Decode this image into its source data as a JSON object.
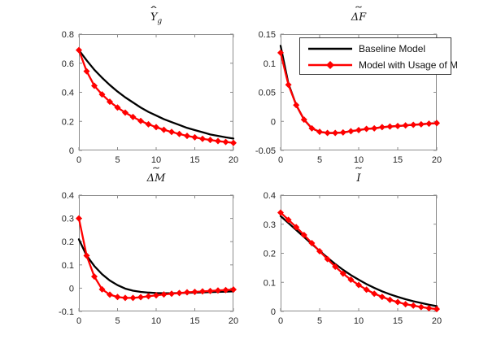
{
  "figure": {
    "background": "#ffffff",
    "axis_color": "#8c8c8c",
    "tick_label_color": "#262626"
  },
  "legend": {
    "position": "top-right-overlay-on-deltaF-subplot",
    "entries": [
      {
        "label": "Baseline Model",
        "color": "#000000",
        "marker": "none"
      },
      {
        "label": "Model with Usage of M",
        "color": "#ff0000",
        "marker": "diamond"
      }
    ]
  },
  "chart_data": [
    {
      "type": "line",
      "title": {
        "base": "Y",
        "sub": "g",
        "accent": "ˆ"
      },
      "xlabel": "",
      "ylabel": "",
      "grid": false,
      "x": [
        0,
        1,
        2,
        3,
        4,
        5,
        6,
        7,
        8,
        9,
        10,
        11,
        12,
        13,
        14,
        15,
        16,
        17,
        18,
        19,
        20
      ],
      "xlim": [
        0,
        20
      ],
      "ylim": [
        0,
        0.8
      ],
      "xticks": [
        0,
        5,
        10,
        15,
        20
      ],
      "yticks": [
        0,
        0.2,
        0.4,
        0.6,
        0.8
      ],
      "series": [
        {
          "name": "Baseline Model",
          "color": "#000000",
          "marker": "none",
          "values": [
            0.69,
            0.62,
            0.555,
            0.5,
            0.45,
            0.405,
            0.365,
            0.33,
            0.295,
            0.265,
            0.24,
            0.215,
            0.195,
            0.175,
            0.155,
            0.14,
            0.125,
            0.11,
            0.1,
            0.09,
            0.082
          ]
        },
        {
          "name": "Model with Usage of M",
          "color": "#ff0000",
          "marker": "diamond",
          "values": [
            0.69,
            0.545,
            0.445,
            0.385,
            0.335,
            0.295,
            0.26,
            0.23,
            0.203,
            0.18,
            0.16,
            0.142,
            0.127,
            0.113,
            0.1,
            0.09,
            0.08,
            0.072,
            0.064,
            0.058,
            0.052
          ]
        }
      ]
    },
    {
      "type": "line",
      "title": {
        "base": "ΔF",
        "sub": "",
        "accent": "˜"
      },
      "xlabel": "",
      "ylabel": "",
      "grid": false,
      "legend": true,
      "x": [
        0,
        1,
        2,
        3,
        4,
        5,
        6,
        7,
        8,
        9,
        10,
        11,
        12,
        13,
        14,
        15,
        16,
        17,
        18,
        19,
        20
      ],
      "xlim": [
        0,
        20
      ],
      "ylim": [
        -0.05,
        0.15
      ],
      "xticks": [
        0,
        5,
        10,
        15,
        20
      ],
      "yticks": [
        -0.05,
        0,
        0.05,
        0.1,
        0.15
      ],
      "series": [
        {
          "name": "Baseline Model",
          "color": "#000000",
          "marker": "none",
          "values": [
            0.13,
            0.065,
            0.028,
            0.003,
            -0.012,
            -0.018,
            -0.02,
            -0.02,
            -0.019,
            -0.017,
            -0.015,
            -0.013,
            -0.012,
            -0.01,
            -0.009,
            -0.008,
            -0.007,
            -0.006,
            -0.005,
            -0.004,
            -0.003
          ]
        },
        {
          "name": "Model with Usage of M",
          "color": "#ff0000",
          "marker": "diamond",
          "values": [
            0.118,
            0.063,
            0.028,
            0.003,
            -0.012,
            -0.018,
            -0.02,
            -0.02,
            -0.019,
            -0.017,
            -0.015,
            -0.013,
            -0.012,
            -0.01,
            -0.009,
            -0.008,
            -0.007,
            -0.006,
            -0.005,
            -0.004,
            -0.003
          ]
        }
      ]
    },
    {
      "type": "line",
      "title": {
        "base": "ΔM",
        "sub": "",
        "accent": "˜"
      },
      "xlabel": "",
      "ylabel": "",
      "grid": false,
      "x": [
        0,
        1,
        2,
        3,
        4,
        5,
        6,
        7,
        8,
        9,
        10,
        11,
        12,
        13,
        14,
        15,
        16,
        17,
        18,
        19,
        20
      ],
      "xlim": [
        0,
        20
      ],
      "ylim": [
        -0.1,
        0.4
      ],
      "xticks": [
        0,
        5,
        10,
        15,
        20
      ],
      "yticks": [
        -0.1,
        0,
        0.1,
        0.2,
        0.3,
        0.4
      ],
      "series": [
        {
          "name": "Baseline Model",
          "color": "#000000",
          "marker": "none",
          "values": [
            0.21,
            0.14,
            0.095,
            0.06,
            0.033,
            0.013,
            -0.002,
            -0.011,
            -0.016,
            -0.019,
            -0.021,
            -0.022,
            -0.022,
            -0.021,
            -0.02,
            -0.019,
            -0.018,
            -0.017,
            -0.016,
            -0.015,
            -0.014
          ]
        },
        {
          "name": "Model with Usage of M",
          "color": "#ff0000",
          "marker": "diamond",
          "values": [
            0.3,
            0.14,
            0.05,
            -0.005,
            -0.028,
            -0.038,
            -0.042,
            -0.042,
            -0.039,
            -0.035,
            -0.031,
            -0.027,
            -0.024,
            -0.021,
            -0.018,
            -0.016,
            -0.014,
            -0.012,
            -0.01,
            -0.008,
            -0.006
          ]
        }
      ]
    },
    {
      "type": "line",
      "title": {
        "base": "I",
        "sub": "",
        "accent": "˜"
      },
      "xlabel": "",
      "ylabel": "",
      "grid": false,
      "x": [
        0,
        1,
        2,
        3,
        4,
        5,
        6,
        7,
        8,
        9,
        10,
        11,
        12,
        13,
        14,
        15,
        16,
        17,
        18,
        19,
        20
      ],
      "xlim": [
        0,
        20
      ],
      "ylim": [
        0,
        0.4
      ],
      "xticks": [
        0,
        5,
        10,
        15,
        20
      ],
      "yticks": [
        0,
        0.1,
        0.2,
        0.3,
        0.4
      ],
      "series": [
        {
          "name": "Baseline Model",
          "color": "#000000",
          "marker": "none",
          "values": [
            0.328,
            0.304,
            0.28,
            0.256,
            0.232,
            0.208,
            0.185,
            0.163,
            0.143,
            0.125,
            0.109,
            0.094,
            0.081,
            0.069,
            0.059,
            0.05,
            0.042,
            0.035,
            0.029,
            0.023,
            0.018
          ]
        },
        {
          "name": "Model with Usage of M",
          "color": "#ff0000",
          "marker": "diamond",
          "values": [
            0.34,
            0.315,
            0.29,
            0.263,
            0.235,
            0.207,
            0.18,
            0.154,
            0.13,
            0.109,
            0.091,
            0.075,
            0.061,
            0.05,
            0.04,
            0.032,
            0.025,
            0.02,
            0.015,
            0.011,
            0.008
          ]
        }
      ]
    }
  ]
}
